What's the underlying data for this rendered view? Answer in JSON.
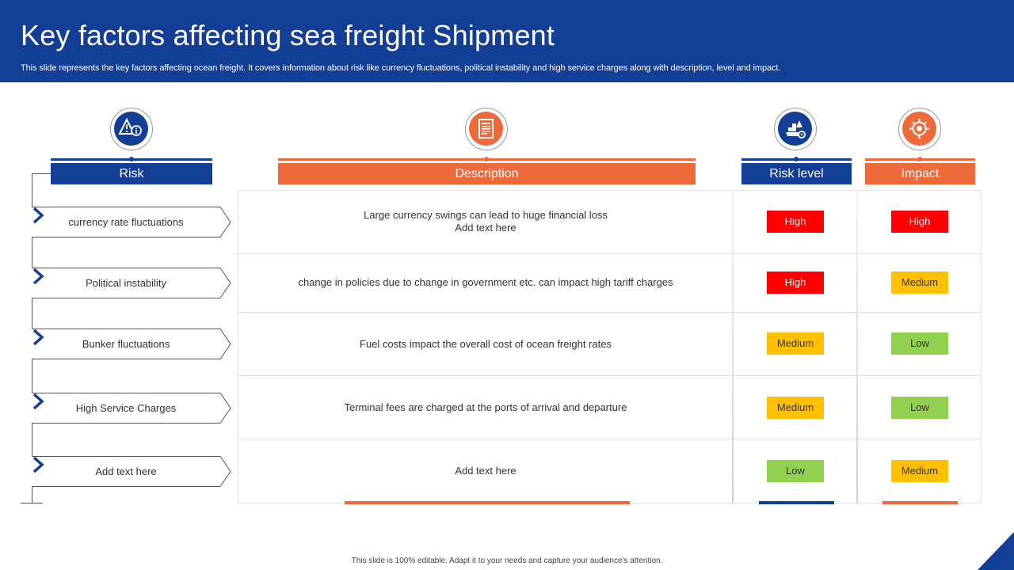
{
  "header": {
    "title": "Key factors affecting sea freight Shipment",
    "subtitle": "This slide represents the key factors affecting ocean freight. It covers information about risk like currency fluctuations, political instability and high service charges along with description, level and impact."
  },
  "columns": {
    "risk": "Risk",
    "description": "Description",
    "risk_level": "Risk level",
    "impact": "Impact"
  },
  "icons": {
    "risk": "warning-info-icon",
    "description": "document-icon",
    "risk_level": "ship-gear-icon",
    "impact": "target-icon"
  },
  "rows": [
    {
      "risk": "currency rate fluctuations",
      "description_line1": "Large currency swings can lead to huge financial loss",
      "description_line2": "Add text here",
      "risk_level": "High",
      "impact": "High"
    },
    {
      "risk": "Political instability",
      "description_line1": "change in policies due to change in government  etc. can impact high tariff charges",
      "description_line2": "",
      "risk_level": "High",
      "impact": "Medium"
    },
    {
      "risk": "Bunker fluctuations",
      "description_line1": "Fuel costs impact the overall  cost of ocean freight  rates",
      "description_line2": "",
      "risk_level": "Medium",
      "impact": "Low"
    },
    {
      "risk": "High Service  Charges",
      "description_line1": "Terminal fees are charged at the ports of arrival  and departure",
      "description_line2": "",
      "risk_level": "Medium",
      "impact": "Low"
    },
    {
      "risk": "Add text here",
      "description_line1": "Add text here",
      "description_line2": "",
      "risk_level": "Low",
      "impact": "Medium"
    }
  ],
  "footer": "This slide is 100% editable.  Adapt it to your needs and capture your audience's attention.",
  "colors": {
    "primary": "#133e96",
    "accent": "#ef6a3a",
    "high": "#ff0000",
    "medium": "#ffc000",
    "low": "#92d050"
  }
}
